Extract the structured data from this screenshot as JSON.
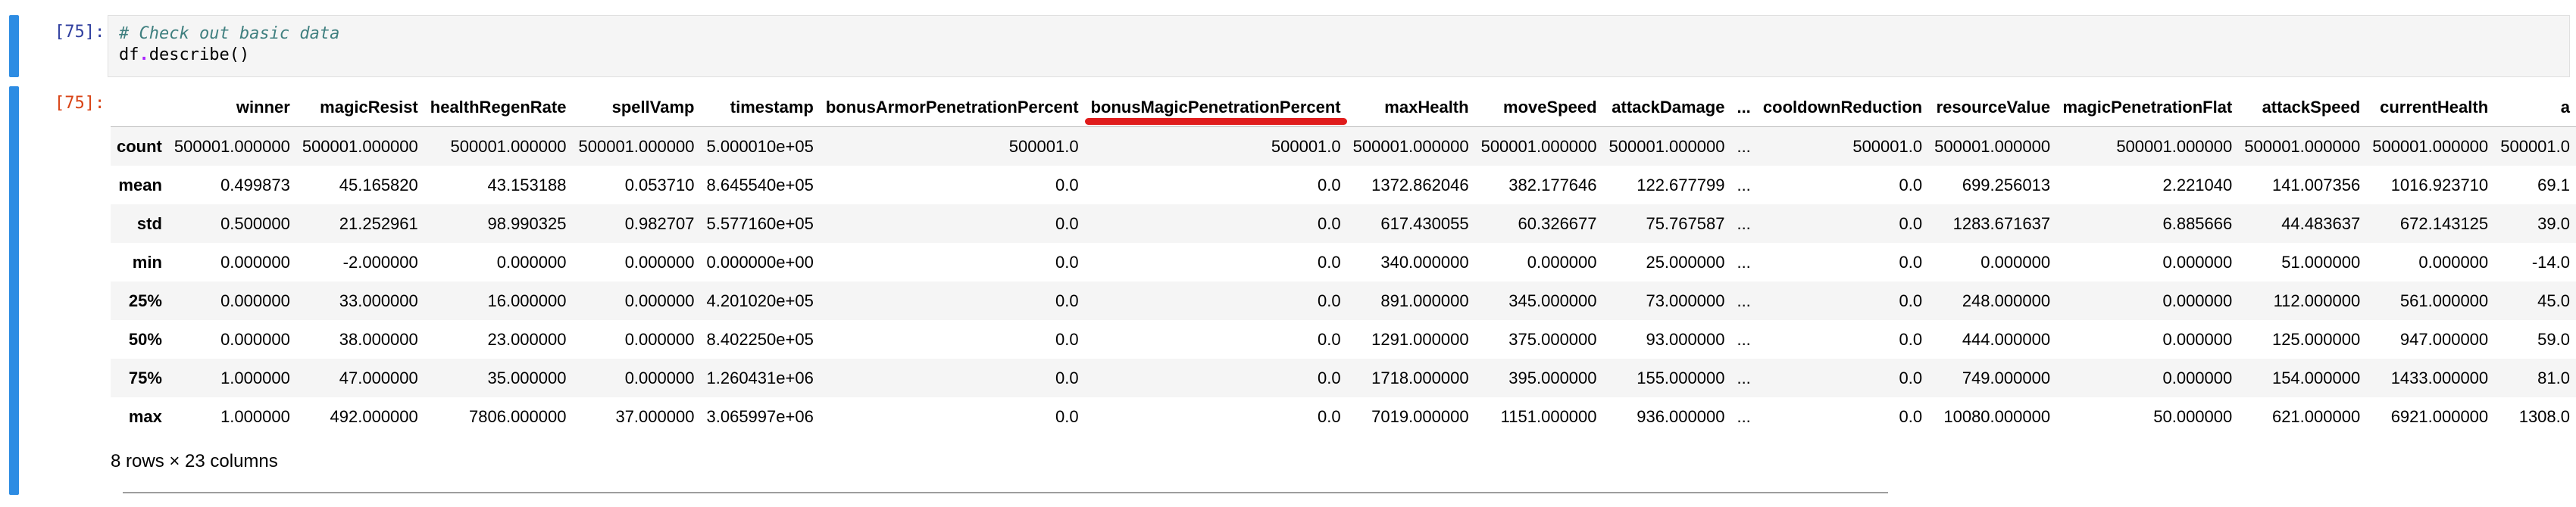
{
  "input_cell": {
    "prompt": "[75]:",
    "comment": "# Check out basic data",
    "code_obj": "df",
    "code_dot": ".",
    "code_func": "describe",
    "code_parens": "()"
  },
  "output_cell": {
    "prompt": "[75]:",
    "summary": "8 rows × 23 columns"
  },
  "table": {
    "columns": [
      "",
      "winner",
      "magicResist",
      "healthRegenRate",
      "spellVamp",
      "timestamp",
      "bonusArmorPenetrationPercent",
      "bonusMagicPenetrationPercent",
      "maxHealth",
      "moveSpeed",
      "attackDamage",
      "...",
      "cooldownReduction",
      "resourceValue",
      "magicPenetrationFlat",
      "attackSpeed",
      "currentHealth",
      "a"
    ],
    "highlighted_column": "bonusMagicPenetrationPercent",
    "highlight_color": "#e01b1b",
    "rows": [
      [
        "count",
        "500001.000000",
        "500001.000000",
        "500001.000000",
        "500001.000000",
        "5.000010e+05",
        "500001.0",
        "500001.0",
        "500001.000000",
        "500001.000000",
        "500001.000000",
        "...",
        "500001.0",
        "500001.000000",
        "500001.000000",
        "500001.000000",
        "500001.000000",
        "500001.0"
      ],
      [
        "mean",
        "0.499873",
        "45.165820",
        "43.153188",
        "0.053710",
        "8.645540e+05",
        "0.0",
        "0.0",
        "1372.862046",
        "382.177646",
        "122.677799",
        "...",
        "0.0",
        "699.256013",
        "2.221040",
        "141.007356",
        "1016.923710",
        "69.1"
      ],
      [
        "std",
        "0.500000",
        "21.252961",
        "98.990325",
        "0.982707",
        "5.577160e+05",
        "0.0",
        "0.0",
        "617.430055",
        "60.326677",
        "75.767587",
        "...",
        "0.0",
        "1283.671637",
        "6.885666",
        "44.483637",
        "672.143125",
        "39.0"
      ],
      [
        "min",
        "0.000000",
        "-2.000000",
        "0.000000",
        "0.000000",
        "0.000000e+00",
        "0.0",
        "0.0",
        "340.000000",
        "0.000000",
        "25.000000",
        "...",
        "0.0",
        "0.000000",
        "0.000000",
        "51.000000",
        "0.000000",
        "-14.0"
      ],
      [
        "25%",
        "0.000000",
        "33.000000",
        "16.000000",
        "0.000000",
        "4.201020e+05",
        "0.0",
        "0.0",
        "891.000000",
        "345.000000",
        "73.000000",
        "...",
        "0.0",
        "248.000000",
        "0.000000",
        "112.000000",
        "561.000000",
        "45.0"
      ],
      [
        "50%",
        "0.000000",
        "38.000000",
        "23.000000",
        "0.000000",
        "8.402250e+05",
        "0.0",
        "0.0",
        "1291.000000",
        "375.000000",
        "93.000000",
        "...",
        "0.0",
        "444.000000",
        "0.000000",
        "125.000000",
        "947.000000",
        "59.0"
      ],
      [
        "75%",
        "1.000000",
        "47.000000",
        "35.000000",
        "0.000000",
        "1.260431e+06",
        "0.0",
        "0.0",
        "1718.000000",
        "395.000000",
        "155.000000",
        "...",
        "0.0",
        "749.000000",
        "0.000000",
        "154.000000",
        "1433.000000",
        "81.0"
      ],
      [
        "max",
        "1.000000",
        "492.000000",
        "7806.000000",
        "37.000000",
        "3.065997e+06",
        "0.0",
        "0.0",
        "7019.000000",
        "1151.000000",
        "936.000000",
        "...",
        "0.0",
        "10080.000000",
        "50.000000",
        "621.000000",
        "6921.000000",
        "1308.0"
      ]
    ]
  },
  "colors": {
    "cell_bar": "#2d8ce3",
    "prompt": "#303f9f",
    "comment": "#408080",
    "row_stripe": "#f5f5f5"
  }
}
